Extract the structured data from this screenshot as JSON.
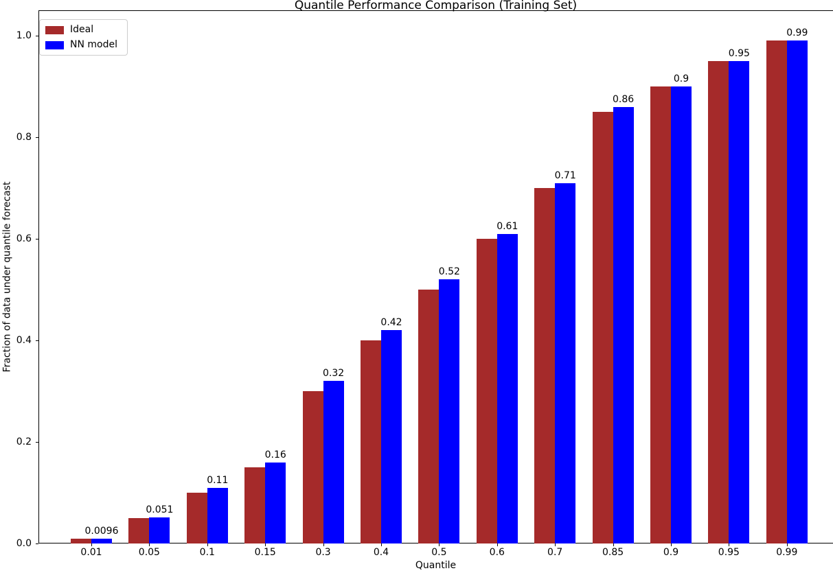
{
  "chart_data": {
    "type": "bar",
    "title": "Quantile Performance Comparison (Training Set)",
    "xlabel": "Quantile",
    "ylabel": "Fraction of data under quantile forecast",
    "categories": [
      "0.01",
      "0.05",
      "0.1",
      "0.15",
      "0.3",
      "0.4",
      "0.5",
      "0.6",
      "0.7",
      "0.85",
      "0.9",
      "0.95",
      "0.99"
    ],
    "series": [
      {
        "name": "Ideal",
        "color": "#A52A2A",
        "values": [
          0.01,
          0.05,
          0.1,
          0.15,
          0.3,
          0.4,
          0.5,
          0.6,
          0.7,
          0.85,
          0.9,
          0.95,
          0.99
        ]
      },
      {
        "name": "NN model",
        "color": "#0000FF",
        "values": [
          0.0096,
          0.051,
          0.11,
          0.16,
          0.32,
          0.42,
          0.52,
          0.61,
          0.71,
          0.86,
          0.9,
          0.95,
          0.99
        ]
      }
    ],
    "bar_labels": [
      "0.0096",
      "0.051",
      "0.11",
      "0.16",
      "0.32",
      "0.42",
      "0.52",
      "0.61",
      "0.71",
      "0.86",
      "0.9",
      "0.95",
      "0.99"
    ],
    "yticks": [
      "0.0",
      "0.2",
      "0.4",
      "0.6",
      "0.8",
      "1.0"
    ],
    "ylim": [
      0,
      1.05
    ],
    "grid": false,
    "legend_position": "upper left"
  }
}
